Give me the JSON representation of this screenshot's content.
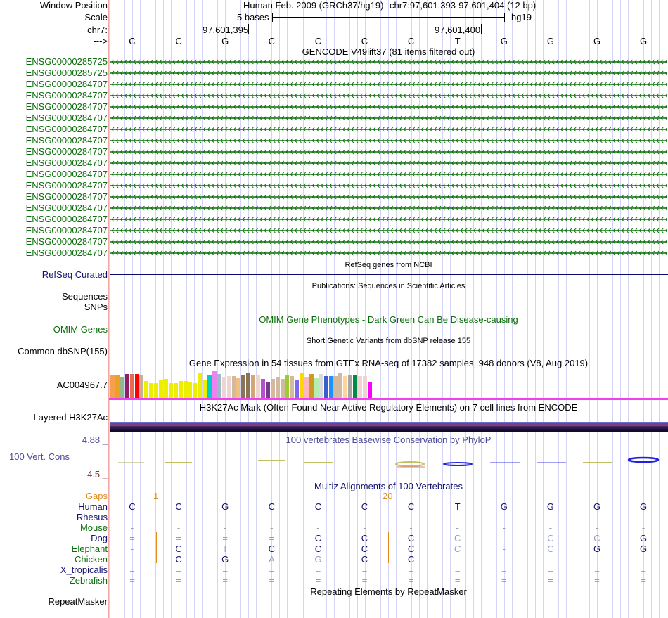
{
  "header": {
    "window_position_label": "Window Position",
    "scale_label": "Scale",
    "chrom_label": "chr7:",
    "strand_label": "--->",
    "assembly": "Human Feb. 2009 (GRCh37/hg19)",
    "position": "chr7:97,601,393-97,601,404 (12 bp)",
    "scale_text": "5 bases",
    "db": "hg19",
    "tick1": "97,601,395",
    "tick2": "97,601,400"
  },
  "sequence": [
    "C",
    "C",
    "G",
    "C",
    "C",
    "C",
    "C",
    "T",
    "G",
    "G",
    "G",
    "G"
  ],
  "gencode": {
    "title": "GENCODE V49lift37 (81 items filtered out)",
    "items": [
      "ENSG00000285725",
      "ENSG00000285725",
      "ENSG00000284707",
      "ENSG00000284707",
      "ENSG00000284707",
      "ENSG00000284707",
      "ENSG00000284707",
      "ENSG00000284707",
      "ENSG00000284707",
      "ENSG00000284707",
      "ENSG00000284707",
      "ENSG00000284707",
      "ENSG00000284707",
      "ENSG00000284707",
      "ENSG00000284707",
      "ENSG00000284707",
      "ENSG00000284707",
      "ENSG00000284707"
    ],
    "color": "#0a6e0a"
  },
  "refseq": {
    "title": "RefSeq genes from NCBI",
    "label": "RefSeq Curated"
  },
  "publications": {
    "title": "Publications: Sequences in Scientific Articles",
    "label1": "Sequences",
    "label2": "SNPs"
  },
  "omim": {
    "title": "OMIM Gene Phenotypes - Dark Green Can Be Disease-causing",
    "label": "OMIM Genes"
  },
  "dbsnp": {
    "title": "Short Genetic Variants from dbSNP release 155",
    "label": "Common dbSNP(155)"
  },
  "gtex": {
    "title": "Gene Expression in 54 tissues from GTEx RNA-seq of 17382 samples, 948 donors (V8, Aug 2019)",
    "label": "AC004967.7",
    "bars": [
      {
        "c": "#f4a050",
        "v": 0.86
      },
      {
        "c": "#eea020",
        "v": 0.86
      },
      {
        "c": "#8fb88f",
        "v": 0.8
      },
      {
        "c": "#8f1f5f",
        "v": 0.9
      },
      {
        "c": "#e86a50",
        "v": 0.9
      },
      {
        "c": "#ff0000",
        "v": 0.9
      },
      {
        "c": "#c8b098",
        "v": 0.86
      },
      {
        "c": "#eeee00",
        "v": 0.62
      },
      {
        "c": "#eeee00",
        "v": 0.54
      },
      {
        "c": "#eeee00",
        "v": 0.56
      },
      {
        "c": "#eeee00",
        "v": 0.66
      },
      {
        "c": "#eeee00",
        "v": 0.7
      },
      {
        "c": "#eeee00",
        "v": 0.54
      },
      {
        "c": "#eeee00",
        "v": 0.54
      },
      {
        "c": "#eeee00",
        "v": 0.62
      },
      {
        "c": "#eeee00",
        "v": 0.62
      },
      {
        "c": "#eeee00",
        "v": 0.58
      },
      {
        "c": "#eeee00",
        "v": 0.56
      },
      {
        "c": "#eeee00",
        "v": 0.94
      },
      {
        "c": "#eeee00",
        "v": 0.66
      },
      {
        "c": "#00cccc",
        "v": 0.88
      },
      {
        "c": "#ee82ee",
        "v": 1.0
      },
      {
        "c": "#99bbcc",
        "v": 0.9
      },
      {
        "c": "#eed5d2",
        "v": 0.8
      },
      {
        "c": "#eed5d2",
        "v": 0.82
      },
      {
        "c": "#d2b9a0",
        "v": 0.82
      },
      {
        "c": "#f0c080",
        "v": 0.74
      },
      {
        "c": "#8b7355",
        "v": 0.86
      },
      {
        "c": "#8b7355",
        "v": 0.92
      },
      {
        "c": "#d2a679",
        "v": 0.86
      },
      {
        "c": "#eed5d2",
        "v": 0.86
      },
      {
        "c": "#b452cd",
        "v": 0.7
      },
      {
        "c": "#7a378b",
        "v": 0.6
      },
      {
        "c": "#d2b9a0",
        "v": 0.72
      },
      {
        "c": "#d2b9a0",
        "v": 0.8
      },
      {
        "c": "#d2b9a0",
        "v": 0.72
      },
      {
        "c": "#9acd32",
        "v": 0.86
      },
      {
        "c": "#d2b9a0",
        "v": 0.82
      },
      {
        "c": "#7b68ee",
        "v": 0.68
      },
      {
        "c": "#ffd700",
        "v": 0.96
      },
      {
        "c": "#ffb6c1",
        "v": 0.8
      },
      {
        "c": "#cd9b1d",
        "v": 0.9
      },
      {
        "c": "#b4eeb4",
        "v": 0.76
      },
      {
        "c": "#d9d9d9",
        "v": 0.9
      },
      {
        "c": "#3a5fcd",
        "v": 0.82
      },
      {
        "c": "#1e90ff",
        "v": 0.82
      },
      {
        "c": "#d2b9a0",
        "v": 0.82
      },
      {
        "c": "#d2b9a0",
        "v": 0.94
      },
      {
        "c": "#ffd39b",
        "v": 0.82
      },
      {
        "c": "#a6a6a6",
        "v": 0.86
      },
      {
        "c": "#008b45",
        "v": 0.86
      },
      {
        "c": "#eed5d2",
        "v": 0.82
      },
      {
        "c": "#eed5d2",
        "v": 0.82
      },
      {
        "c": "#ff00ff",
        "v": 0.6
      }
    ]
  },
  "h3k27ac": {
    "title": "H3K27Ac Mark (Often Found Near Active Regulatory Elements) on 7 cell lines from ENCODE",
    "label": "Layered H3K27Ac"
  },
  "phylop": {
    "title": "100 vertebrates Basewise Conservation by PhyloP",
    "label": "100 Vert. Cons",
    "max": "4.88 _",
    "min": "-4.5 _"
  },
  "multiz": {
    "title": "Multiz Alignments of 100 Vertebrates",
    "gaps_label": "Gaps",
    "gap_marks": [
      "1",
      "20"
    ],
    "species": [
      {
        "name": "Human",
        "color": "navy",
        "bases": [
          "C",
          "C",
          "G",
          "C",
          "C",
          "C",
          "C",
          "T",
          "G",
          "G",
          "G",
          "G"
        ]
      },
      {
        "name": "Rhesus",
        "color": "navy",
        "bases": [
          "",
          "",
          "",
          "",
          "",
          "",
          "",
          "",
          "",
          "",
          "",
          ""
        ]
      },
      {
        "name": "Mouse",
        "color": "green",
        "bases": [
          "-",
          "-",
          "-",
          "-",
          "-",
          "-",
          "-",
          "-",
          "-",
          "-",
          "-",
          "-"
        ]
      },
      {
        "name": "Dog",
        "color": "navy",
        "bases": [
          "=",
          "=",
          "=",
          "=",
          "C",
          "C",
          "C",
          "C",
          "-",
          "C",
          "C",
          "G"
        ]
      },
      {
        "name": "Elephant",
        "color": "green",
        "bases": [
          "-",
          "C",
          "T",
          "C",
          "C",
          "C",
          "C",
          "C",
          "-",
          "C",
          "G",
          "G"
        ]
      },
      {
        "name": "Chicken",
        "color": "green",
        "bases": [
          "-",
          "C",
          "G",
          "A",
          "G",
          "C",
          "C",
          "-",
          "-",
          "-",
          "-",
          "-"
        ]
      },
      {
        "name": "X_tropicalis",
        "color": "navy",
        "bases": [
          "=",
          "=",
          "=",
          "=",
          "=",
          "=",
          "=",
          "=",
          "=",
          "=",
          "=",
          "="
        ]
      },
      {
        "name": "Zebrafish",
        "color": "green",
        "bases": [
          "=",
          "=",
          "=",
          "=",
          "=",
          "=",
          "=",
          "=",
          "=",
          "=",
          "=",
          "="
        ]
      }
    ]
  },
  "repeatmasker": {
    "title": "Repeating Elements by RepeatMasker",
    "label": "RepeatMasker"
  }
}
